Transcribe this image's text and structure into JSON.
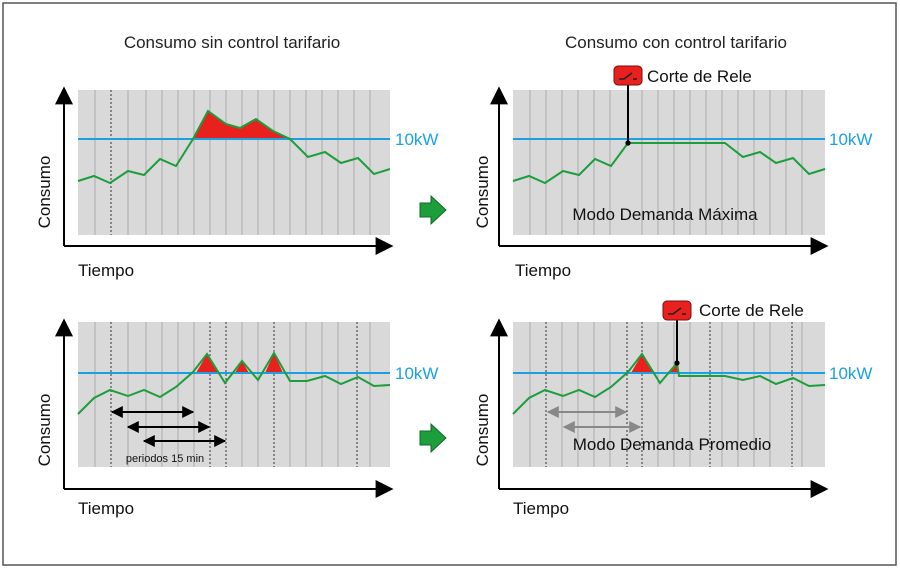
{
  "colors": {
    "border": "#555555",
    "plot_bg": "#d9d9d9",
    "plot_grid": "#aaaaaa",
    "threshold": "#1ba1e2",
    "consumption": "#1c9e3c",
    "excess": "#e8201e",
    "axis": "#000000",
    "relay": "#e8201e",
    "arrow_green": "#1c9e3c",
    "period_arrow": "#000000",
    "period_arrow_muted": "#888888"
  },
  "titles": {
    "left": "Consumo sin control tarifario",
    "right": "Consumo con control tarifario"
  },
  "panels": [
    {
      "id": "top-left",
      "ylabel": "Consumo",
      "xlabel": "Tiempo",
      "threshold_label": "10kW",
      "dashed_lines": [
        1
      ]
    },
    {
      "id": "top-right",
      "ylabel": "Consumo",
      "xlabel": "Tiempo",
      "threshold_label": "10kW",
      "relay_label": "Corte de Rele",
      "mode_label": "Modo Demanda Máxima",
      "relay_icon": "relay-switch-icon"
    },
    {
      "id": "bottom-left",
      "ylabel": "Consumo",
      "xlabel": "Tiempo",
      "threshold_label": "10kW",
      "periods_label": "periodos 15 min",
      "dashed_lines": [
        1,
        2,
        3,
        4,
        5
      ]
    },
    {
      "id": "bottom-right",
      "ylabel": "Consumo",
      "xlabel": "Tiempo",
      "threshold_label": "10kW",
      "relay_label": "Corte de Rele",
      "mode_label": "Modo Demanda Promedio",
      "relay_icon": "relay-switch-icon",
      "dashed_lines": [
        1,
        2,
        3,
        4,
        5
      ]
    }
  ],
  "transition_icon": "green-right-arrow-icon"
}
